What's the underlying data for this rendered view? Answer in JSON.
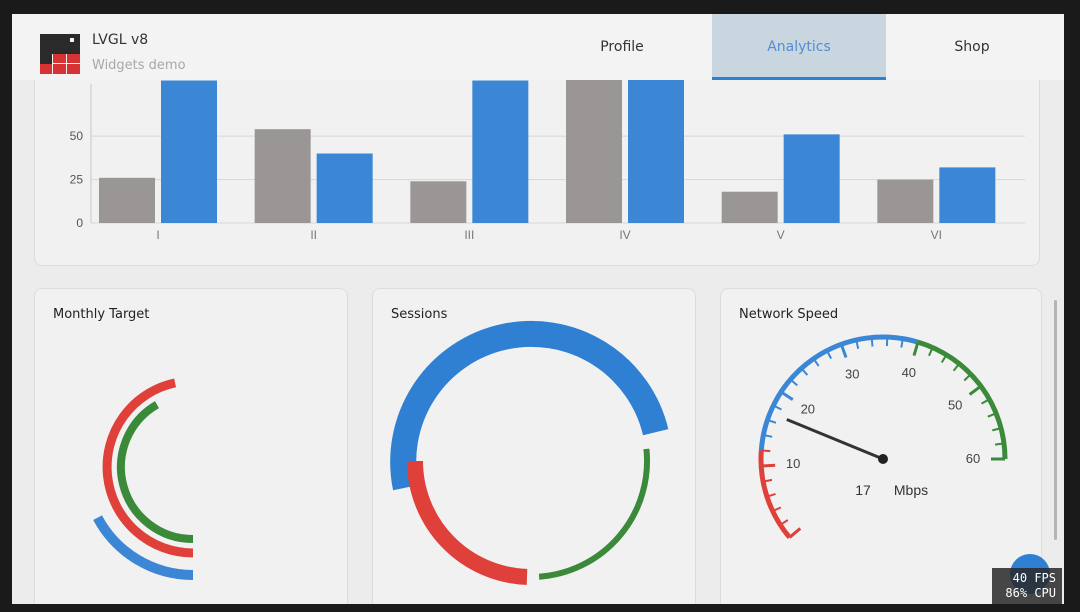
{
  "header": {
    "title": "LVGL v8",
    "subtitle": "Widgets demo",
    "tabs": [
      {
        "label": "Profile",
        "active": false
      },
      {
        "label": "Analytics",
        "active": true
      },
      {
        "label": "Shop",
        "active": false
      }
    ]
  },
  "chart_data": [
    {
      "type": "bar",
      "categories": [
        "I",
        "II",
        "III",
        "IV",
        "V",
        "VI"
      ],
      "series": [
        {
          "values": [
            26,
            54,
            24,
            85,
            18,
            25
          ],
          "color": "#9a9696"
        },
        {
          "values": [
            82,
            40,
            82,
            86,
            51,
            32
          ],
          "color": "#3c86d6"
        }
      ],
      "y_ticks": [
        0,
        25,
        50
      ],
      "ylim": [
        0,
        80
      ],
      "grid": true
    },
    {
      "type": "arc",
      "title": "Monthly Target",
      "colors": [
        "#e0403a",
        "#3a8a3a",
        "#3c86d6"
      ]
    },
    {
      "type": "arc",
      "title": "Sessions",
      "colors": [
        "#2f7fd3",
        "#e0403a",
        "#3a8a3a"
      ]
    },
    {
      "type": "gauge",
      "title": "Network Speed",
      "value": 17,
      "unit": "Mbps",
      "scale_labels": [
        "10",
        "20",
        "30",
        "40",
        "50",
        "60"
      ],
      "range": [
        0,
        60
      ],
      "colors": [
        "#e0403a",
        "#3c86d6",
        "#3a8a3a"
      ]
    }
  ],
  "perf": {
    "fps": "40 FPS",
    "cpu": "86% CPU"
  }
}
